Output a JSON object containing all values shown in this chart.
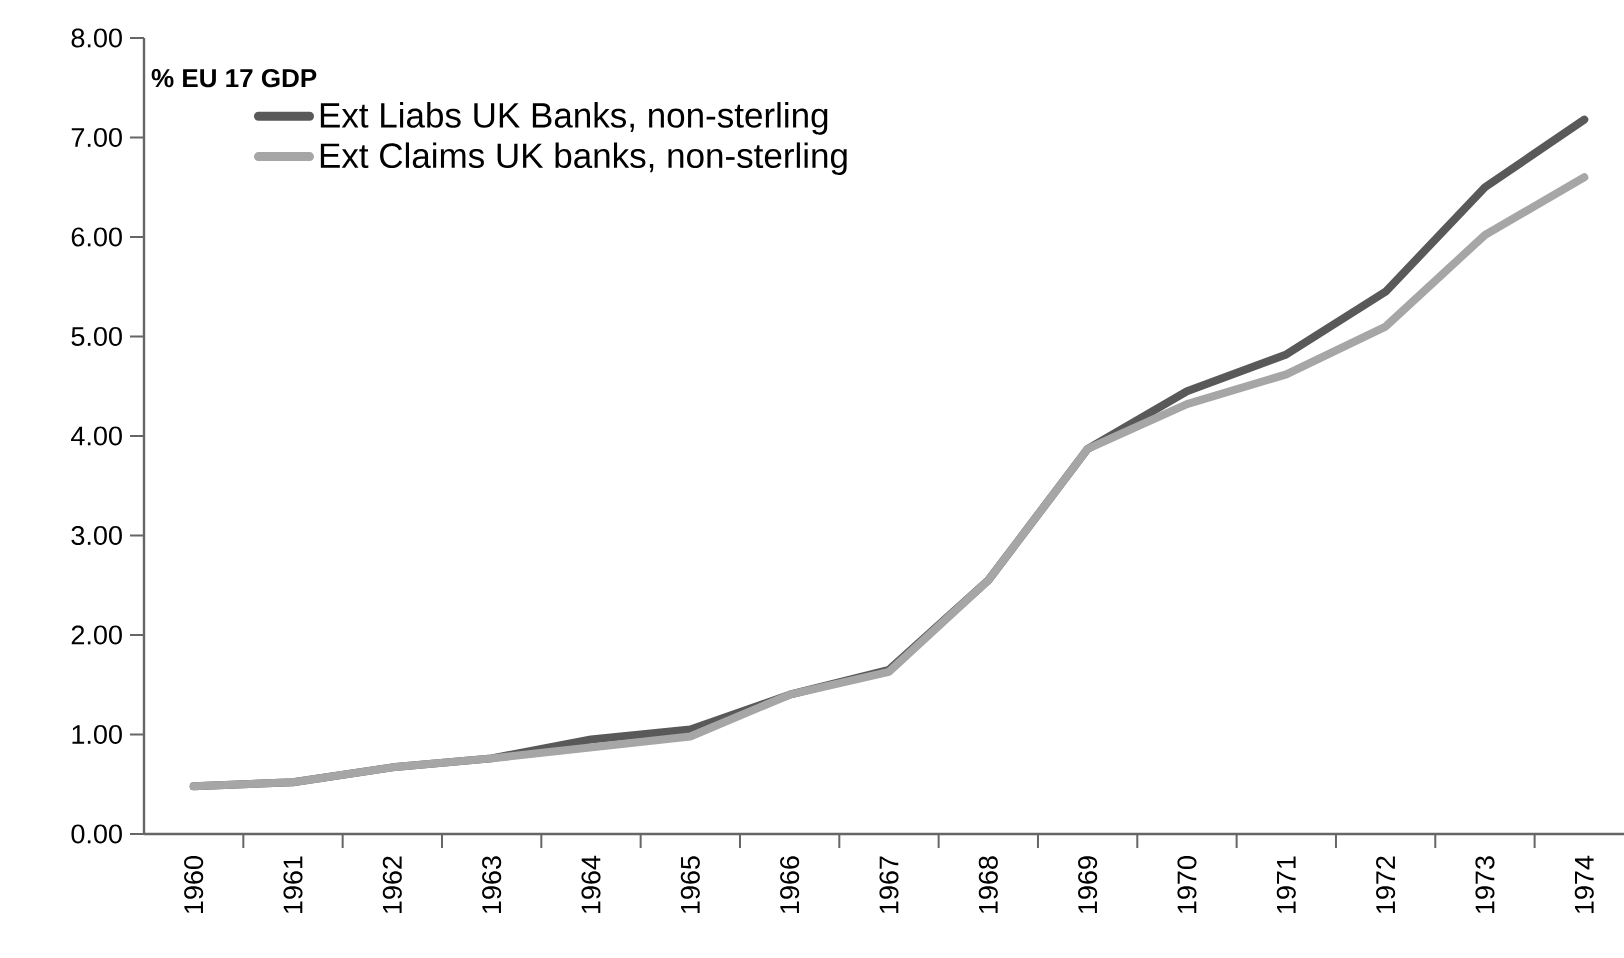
{
  "chart_data": {
    "type": "line",
    "ylabel": "% EU 17 GDP",
    "categories": [
      "1960",
      "1961",
      "1962",
      "1963",
      "1964",
      "1965",
      "1966",
      "1967",
      "1968",
      "1969",
      "1970",
      "1971",
      "1972",
      "1973",
      "1974"
    ],
    "series": [
      {
        "name": "Ext Liabs UK Banks, non-sterling",
        "color": "#595959",
        "values": [
          0.48,
          0.52,
          0.67,
          0.76,
          0.95,
          1.05,
          1.4,
          1.65,
          2.55,
          3.87,
          4.45,
          4.82,
          5.45,
          6.5,
          7.18
        ]
      },
      {
        "name": "Ext Claims UK banks,  non-sterling",
        "color": "#a6a6a6",
        "values": [
          0.48,
          0.52,
          0.67,
          0.76,
          0.87,
          0.98,
          1.4,
          1.63,
          2.55,
          3.87,
          4.32,
          4.62,
          5.1,
          6.02,
          6.6
        ]
      }
    ],
    "ylim": [
      0,
      8
    ],
    "yticks": [
      {
        "value": 0,
        "label": "0.00"
      },
      {
        "value": 1,
        "label": "1.00"
      },
      {
        "value": 2,
        "label": "2.00"
      },
      {
        "value": 3,
        "label": "3.00"
      },
      {
        "value": 4,
        "label": "4.00"
      },
      {
        "value": 5,
        "label": "5.00"
      },
      {
        "value": 6,
        "label": "6.00"
      },
      {
        "value": 7,
        "label": "7.00"
      },
      {
        "value": 8,
        "label": "8.00"
      }
    ],
    "legend": "top left"
  }
}
